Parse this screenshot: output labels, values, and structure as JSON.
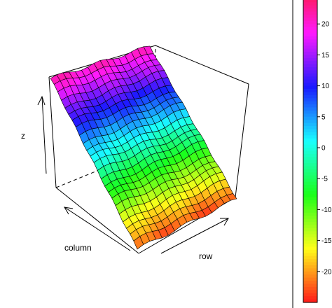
{
  "chart_data": {
    "type": "surface3d",
    "title": "",
    "xlabel": "row",
    "ylabel": "column",
    "zlabel": "z",
    "grid": false,
    "legend_position": "right",
    "colorbar": {
      "ticks": [
        20,
        15,
        10,
        5,
        0,
        -5,
        -10,
        -15,
        -20
      ],
      "tick_labels": [
        "20",
        "15",
        "10",
        "5",
        "0",
        "-5",
        "-10",
        "-15",
        "-20"
      ],
      "zlim": [
        -25,
        25
      ],
      "palette": "rainbow (red → yellow → green → cyan → blue → magenta → red)"
    },
    "surface": {
      "rows": 16,
      "cols": 24,
      "description_of_values": "z decreases roughly linearly along column from about 21 to about -23, with small sinusoidal ripples along row and column",
      "z_at_column_start": 21,
      "z_at_column_end": -23
    }
  }
}
